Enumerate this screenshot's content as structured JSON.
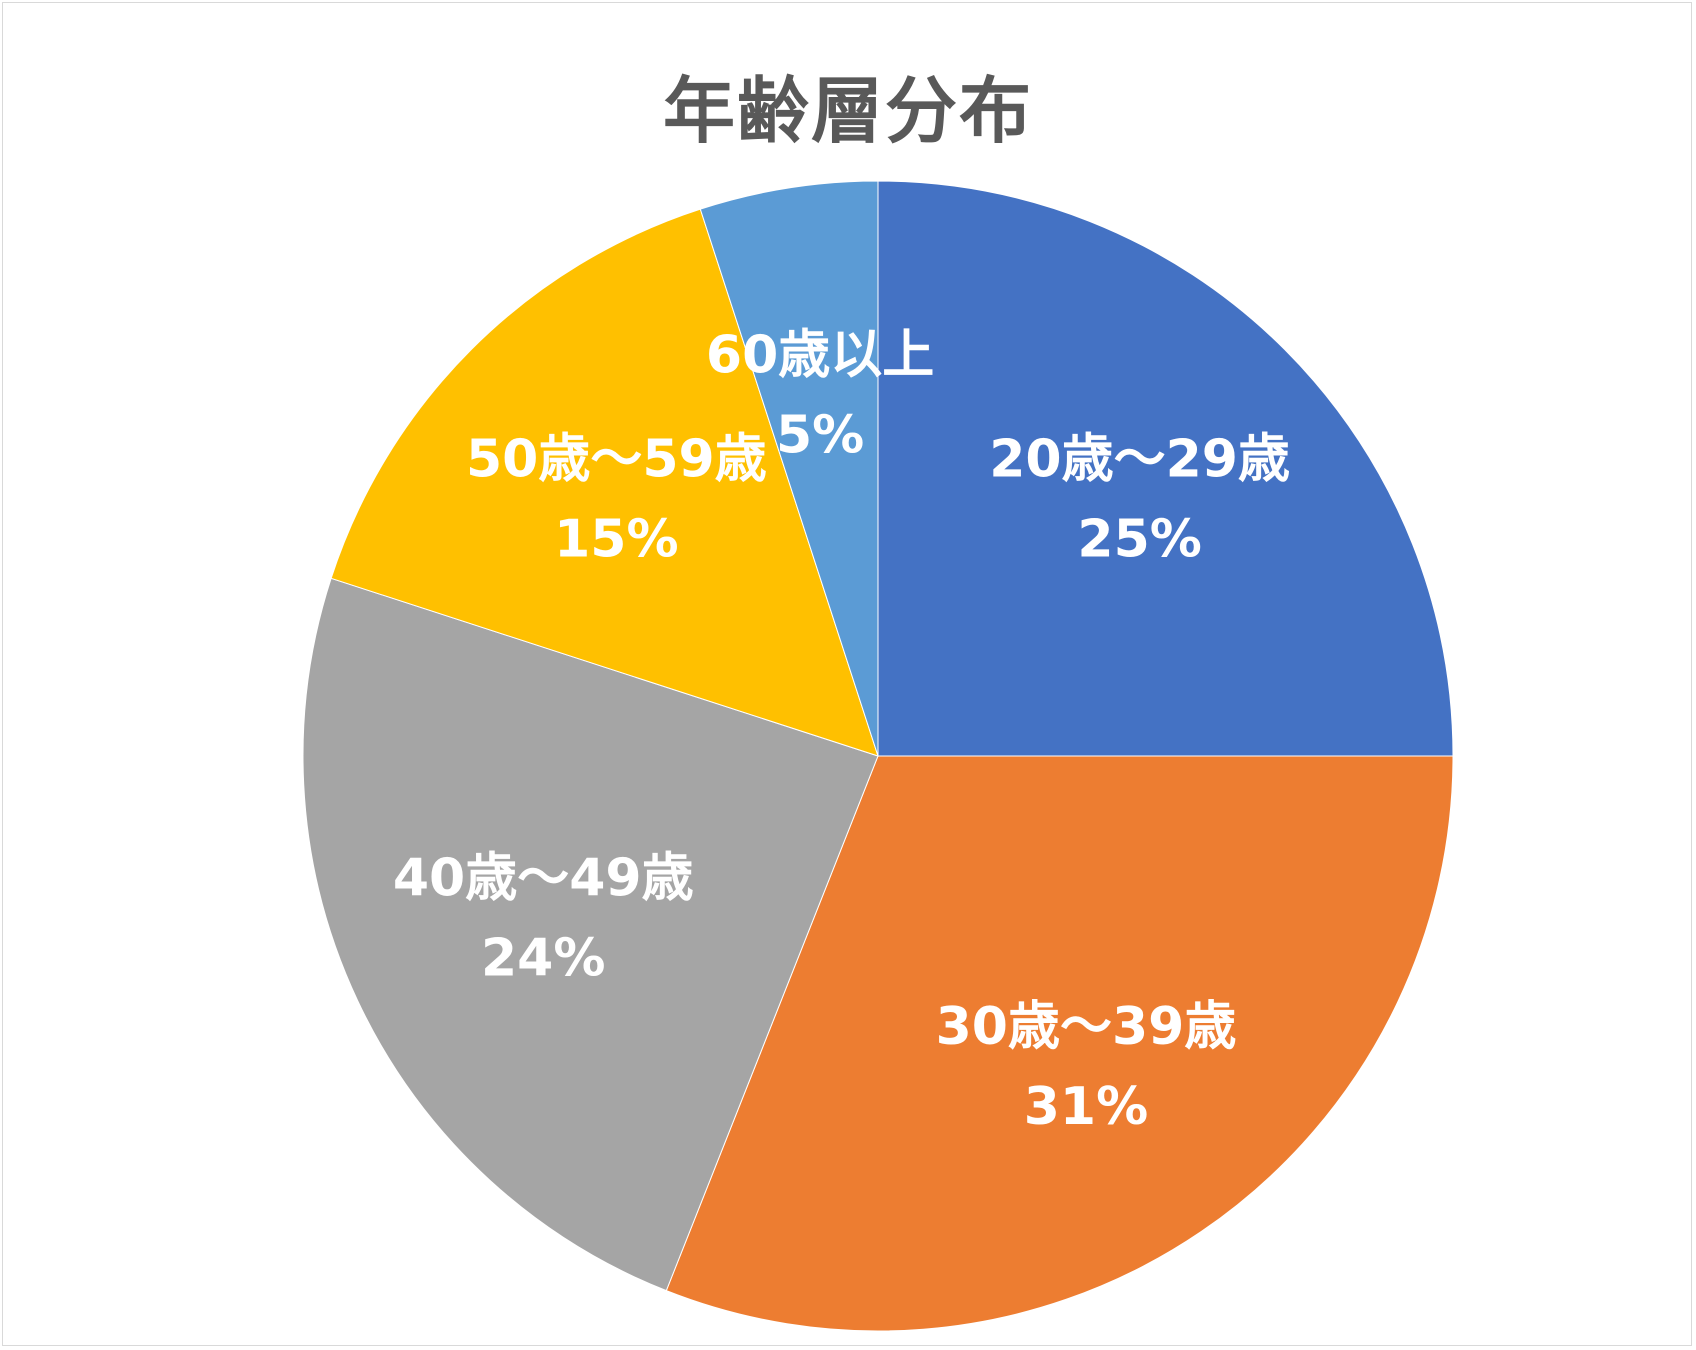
{
  "chart_data": {
    "type": "pie",
    "title": "年齢層分布",
    "slices": [
      {
        "label": "20歳～29歳",
        "value": 25,
        "value_label": "25%",
        "color": "#4472C4"
      },
      {
        "label": "30歳～39歳",
        "value": 31,
        "value_label": "31%",
        "color": "#ED7D31"
      },
      {
        "label": "40歳～49歳",
        "value": 24,
        "value_label": "24%",
        "color": "#A5A5A5"
      },
      {
        "label": "50歳～59歳",
        "value": 15,
        "value_label": "15%",
        "color": "#FFC000"
      },
      {
        "label": "60歳以上",
        "value": 5,
        "value_label": "5%",
        "color": "#5B9BD5"
      }
    ],
    "start_angle": "12 o'clock",
    "direction": "clockwise",
    "legend": "none"
  }
}
